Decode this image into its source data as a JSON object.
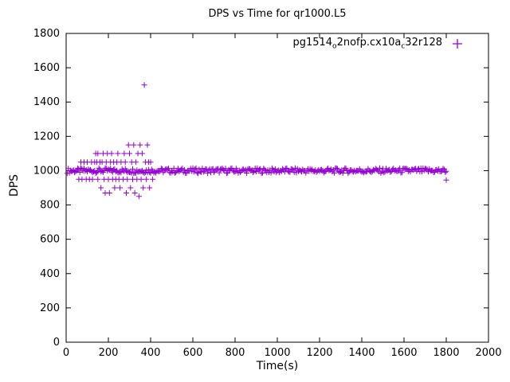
{
  "chart_data": {
    "type": "scatter",
    "title": "DPS vs Time for qr1000.L5",
    "xlabel": "Time(s)",
    "ylabel": "DPS",
    "xlim": [
      0,
      2000
    ],
    "ylim": [
      0,
      1800
    ],
    "xticks": [
      0,
      200,
      400,
      600,
      800,
      1000,
      1200,
      1400,
      1600,
      1800,
      2000
    ],
    "yticks": [
      0,
      200,
      400,
      600,
      800,
      1000,
      1200,
      1400,
      1600,
      1800
    ],
    "grid": false,
    "legend_position": "top-right-inside",
    "marker": "plus",
    "marker_color": "#9400d3",
    "legend": {
      "parts": [
        {
          "t": "pg1514"
        },
        {
          "t": "o",
          "sub": true
        },
        {
          "t": "2nofp.cx10a"
        },
        {
          "t": "c",
          "sub": true
        },
        {
          "t": "32r128"
        }
      ]
    },
    "band": {
      "comment": "dense horizontal run of plus markers at ~1000 DPS",
      "x_start": 5,
      "x_end": 1800,
      "x_step": 5,
      "y_center": 1000,
      "y_min": 985,
      "y_max": 1015
    },
    "points": [
      [
        60,
        950
      ],
      [
        70,
        1050
      ],
      [
        75,
        950
      ],
      [
        85,
        1050
      ],
      [
        95,
        950
      ],
      [
        100,
        1050
      ],
      [
        110,
        950
      ],
      [
        120,
        1050
      ],
      [
        125,
        950
      ],
      [
        135,
        1050
      ],
      [
        140,
        1100
      ],
      [
        145,
        1050
      ],
      [
        150,
        1100
      ],
      [
        150,
        950
      ],
      [
        160,
        1050
      ],
      [
        165,
        900
      ],
      [
        170,
        1050
      ],
      [
        175,
        1100
      ],
      [
        180,
        950
      ],
      [
        185,
        870
      ],
      [
        190,
        1050
      ],
      [
        195,
        1100
      ],
      [
        200,
        950
      ],
      [
        205,
        870
      ],
      [
        210,
        1050
      ],
      [
        215,
        1100
      ],
      [
        220,
        950
      ],
      [
        225,
        1050
      ],
      [
        230,
        900
      ],
      [
        235,
        950
      ],
      [
        240,
        1050
      ],
      [
        245,
        1100
      ],
      [
        250,
        950
      ],
      [
        255,
        900
      ],
      [
        260,
        1050
      ],
      [
        270,
        950
      ],
      [
        275,
        1100
      ],
      [
        280,
        1050
      ],
      [
        285,
        870
      ],
      [
        290,
        950
      ],
      [
        295,
        1150
      ],
      [
        300,
        1100
      ],
      [
        305,
        900
      ],
      [
        310,
        1050
      ],
      [
        315,
        950
      ],
      [
        320,
        1150
      ],
      [
        325,
        870
      ],
      [
        330,
        1050
      ],
      [
        335,
        950
      ],
      [
        340,
        1100
      ],
      [
        345,
        850
      ],
      [
        350,
        1150
      ],
      [
        355,
        950
      ],
      [
        360,
        1100
      ],
      [
        365,
        900
      ],
      [
        370,
        1500
      ],
      [
        375,
        1050
      ],
      [
        380,
        950
      ],
      [
        385,
        1150
      ],
      [
        390,
        1050
      ],
      [
        395,
        900
      ],
      [
        400,
        1050
      ],
      [
        410,
        950
      ],
      [
        1800,
        945
      ]
    ]
  }
}
